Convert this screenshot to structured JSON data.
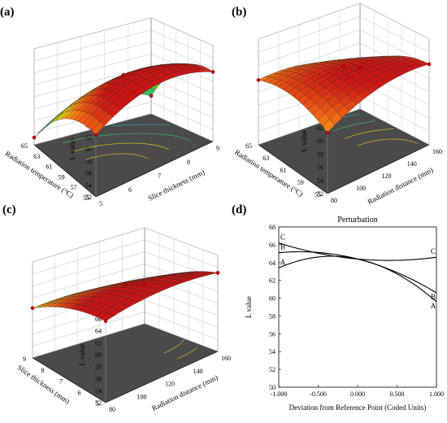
{
  "chart_data": [
    {
      "type": "surface3d",
      "panel_label": "(a)",
      "zlabel": "L value",
      "zticks": [
        52,
        54,
        56,
        58,
        60,
        62,
        64,
        66,
        68
      ],
      "x1label": "Radiation temperature (°C)",
      "x1ticks": [
        55,
        57,
        59,
        61,
        63,
        65
      ],
      "x2label": "Slice thickness (mm)",
      "x2ticks": [
        5,
        6,
        7,
        8,
        9
      ],
      "corner_values": [
        62.3,
        63.6,
        53.2,
        55.0
      ],
      "center_value": 64.4
    },
    {
      "type": "surface3d",
      "panel_label": "(b)",
      "zlabel": "L value",
      "zticks": [
        52,
        54,
        56,
        58,
        60,
        62,
        64,
        66,
        68
      ],
      "x1label": "Radiation temperature (°C)",
      "x1ticks": [
        55,
        59,
        61,
        63,
        65
      ],
      "x2label": "Radiation distance (mm)",
      "x2ticks": [
        80,
        100,
        120,
        140,
        160
      ],
      "corner_values": [
        61.2,
        64.2,
        61.8,
        58.2
      ],
      "center_value": 64.4
    },
    {
      "type": "surface3d",
      "panel_label": "(c)",
      "zlabel": "L value",
      "zticks": [
        52,
        54,
        56,
        58,
        60,
        62,
        64,
        66,
        68
      ],
      "x1label": "Slice thickness (mm)",
      "x1ticks": [
        5,
        6,
        7,
        8,
        9
      ],
      "x2label": "Radiation distance (mm)",
      "x2ticks": [
        80,
        100,
        120,
        140,
        160
      ],
      "corner_values": [
        65.6,
        65.1,
        60.3,
        58.4
      ],
      "center_value": 64.4
    },
    {
      "type": "line",
      "panel_label": "(d)",
      "title": "Perturbation",
      "xlabel": "Deviation from Reference Point (Coded Units)",
      "ylabel": "L value",
      "xlim": [
        -1.0,
        1.0
      ],
      "ylim": [
        50,
        68
      ],
      "xticks": [
        "-1.000",
        "-0.500",
        "0.000",
        "0.500",
        "1.000"
      ],
      "yticks": [
        50,
        52,
        54,
        56,
        58,
        60,
        62,
        64,
        66,
        68
      ],
      "series": [
        {
          "name": "A",
          "x": [
            -1,
            -0.5,
            0,
            0.5,
            1
          ],
          "y": [
            63.4,
            64.2,
            64.4,
            63.3,
            59.6
          ]
        },
        {
          "name": "B",
          "x": [
            -1,
            -0.5,
            0,
            0.5,
            1
          ],
          "y": [
            65.1,
            64.9,
            64.4,
            63.2,
            60.6
          ]
        },
        {
          "name": "C",
          "x": [
            -1,
            -0.5,
            0,
            0.5,
            1
          ],
          "y": [
            66.2,
            65.2,
            64.4,
            64.2,
            64.6
          ]
        }
      ]
    }
  ]
}
